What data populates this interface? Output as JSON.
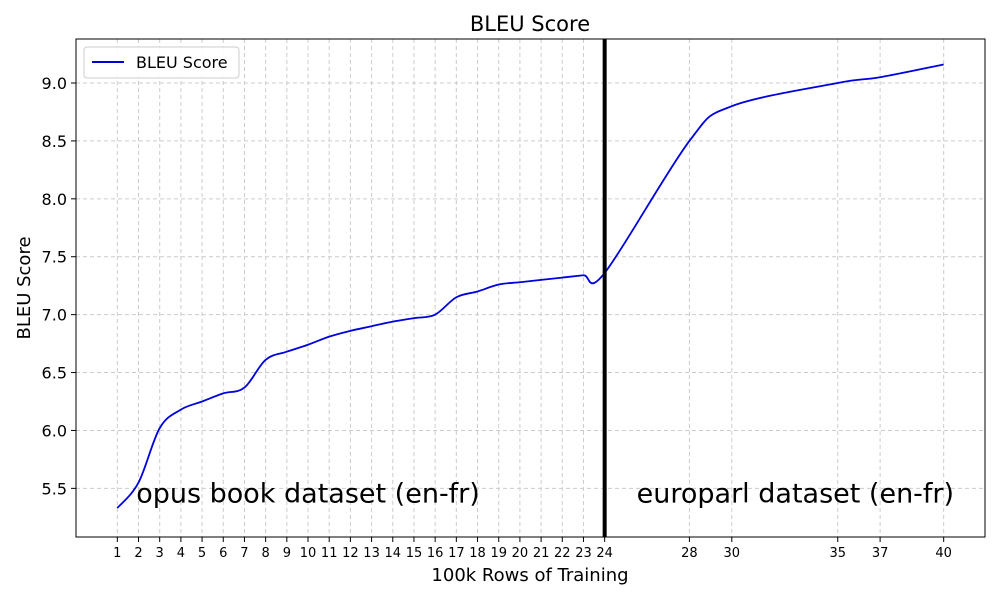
{
  "chart_data": {
    "type": "line",
    "title": "BLEU Score",
    "xlabel": "100k Rows of Training",
    "ylabel": "BLEU Score",
    "xlim": [
      -0.95,
      41.95
    ],
    "ylim": [
      5.08,
      9.38
    ],
    "x_ticks": [
      1,
      2,
      3,
      4,
      5,
      6,
      7,
      8,
      9,
      10,
      11,
      12,
      13,
      14,
      15,
      16,
      17,
      18,
      19,
      20,
      21,
      22,
      23,
      24,
      28,
      30,
      35,
      37,
      40
    ],
    "y_ticks": [
      5.5,
      6.0,
      6.5,
      7.0,
      7.5,
      8.0,
      8.5,
      9.0
    ],
    "y_tick_labels": [
      "5.5",
      "6.0",
      "6.5",
      "7.0",
      "7.5",
      "8.0",
      "8.5",
      "9.0"
    ],
    "grid": true,
    "legend_position": "top-left",
    "series": [
      {
        "name": "BLEU Score",
        "color": "#0000dd",
        "x": [
          1,
          2,
          3,
          4,
          5,
          6,
          7,
          8,
          9,
          10,
          11,
          12,
          13,
          14,
          15,
          16,
          17,
          18,
          19,
          20,
          21,
          22,
          23,
          24,
          28,
          30,
          35,
          37,
          40
        ],
        "y": [
          5.33,
          5.55,
          6.02,
          6.18,
          6.25,
          6.32,
          6.37,
          6.61,
          6.68,
          6.74,
          6.81,
          6.86,
          6.9,
          6.94,
          6.97,
          7.0,
          7.15,
          7.2,
          7.26,
          7.28,
          7.3,
          7.32,
          7.34,
          7.36,
          8.5,
          8.8,
          9.0,
          9.05,
          9.16
        ]
      }
    ],
    "vline": {
      "x": 24,
      "color": "#000000"
    },
    "annotations": [
      {
        "text": "opus book dataset (en-fr)",
        "x": 10,
        "y": 5.38
      },
      {
        "text": "europarl dataset (en-fr)",
        "x": 33,
        "y": 5.38
      }
    ]
  }
}
